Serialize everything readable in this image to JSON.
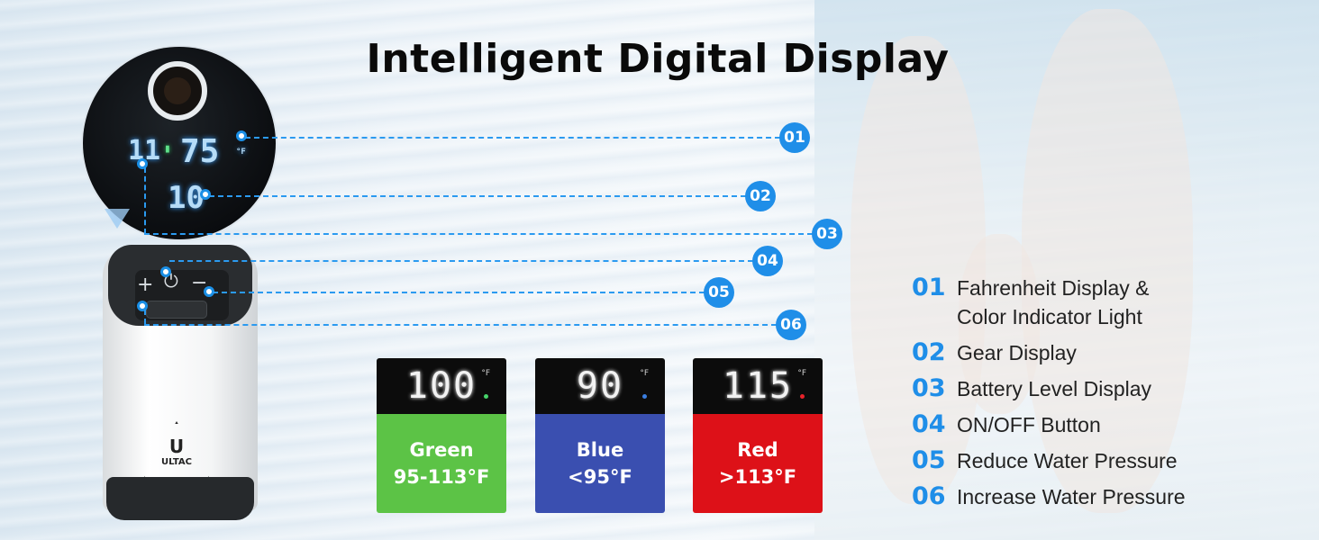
{
  "title": "Intelligent Digital Display",
  "brand": {
    "logo_text": "ULTAC"
  },
  "display_closeup": {
    "temperature": "75",
    "temp_unit": "°F",
    "gear": "10",
    "battery": "11"
  },
  "device_buttons": {
    "plus": "+",
    "minus": "−",
    "power": "⏻"
  },
  "callouts": [
    "01",
    "02",
    "03",
    "04",
    "05",
    "06"
  ],
  "cards": [
    {
      "readout": "100",
      "unit": "°F",
      "name": "Green",
      "range": "95-113°F",
      "color": "#5cc346",
      "indicator": "#46d36a"
    },
    {
      "readout": "90",
      "unit": "°F",
      "name": "Blue",
      "range": "<95°F",
      "color": "#3a4fb0",
      "indicator": "#3a7ee0"
    },
    {
      "readout": "115",
      "unit": "°F",
      "name": "Red",
      "range": ">113°F",
      "color": "#dd1118",
      "indicator": "#e8222a"
    }
  ],
  "legend": [
    {
      "num": "01",
      "text": "Fahrenheit Display &",
      "text2": "Color Indicator Light"
    },
    {
      "num": "02",
      "text": "Gear Display"
    },
    {
      "num": "03",
      "text": "Battery Level Display"
    },
    {
      "num": "04",
      "text": "ON/OFF Button"
    },
    {
      "num": "05",
      "text": "Reduce Water Pressure"
    },
    {
      "num": "06",
      "text": "Increase Water Pressure"
    }
  ],
  "colors": {
    "accent": "#1f8ee8",
    "title": "#0a0a0a"
  }
}
